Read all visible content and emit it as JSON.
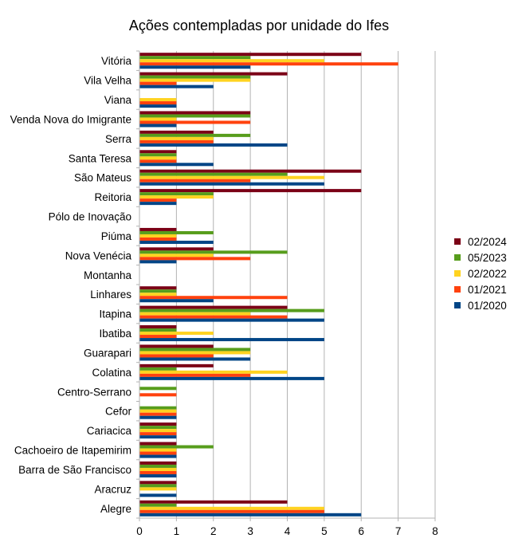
{
  "chart_data": {
    "type": "bar",
    "orientation": "horizontal",
    "title": "Ações contempladas por unidade do Ifes",
    "xlabel": "",
    "ylabel": "",
    "xlim": [
      0,
      8
    ],
    "xticks": [
      "0",
      "1",
      "2",
      "3",
      "4",
      "5",
      "6",
      "7",
      "8"
    ],
    "grid": "vertical",
    "legend_position": "right",
    "categories": [
      "Vitória",
      "Vila Velha",
      "Viana",
      "Venda Nova do Imigrante",
      "Serra",
      "Santa Teresa",
      "São Mateus",
      "Reitoria",
      "Pólo de Inovação",
      "Piúma",
      "Nova Venécia",
      "Montanha",
      "Linhares",
      "Itapina",
      "Ibatiba",
      "Guarapari",
      "Colatina",
      "Centro-Serrano",
      "Cefor",
      "Cariacica",
      "Cachoeiro de Itapemirim",
      "Barra de São Francisco",
      "Aracruz",
      "Alegre"
    ],
    "series": [
      {
        "name": "02/2024",
        "color": "#7b0016",
        "values": [
          6,
          4,
          0,
          3,
          2,
          1,
          6,
          6,
          0,
          1,
          2,
          0,
          1,
          4,
          1,
          2,
          2,
          0,
          0,
          1,
          1,
          1,
          1,
          4
        ]
      },
      {
        "name": "05/2023",
        "color": "#579d1c",
        "values": [
          3,
          3,
          0,
          3,
          3,
          1,
          4,
          2,
          0,
          2,
          4,
          0,
          1,
          5,
          1,
          3,
          1,
          1,
          1,
          1,
          2,
          1,
          1,
          1
        ]
      },
      {
        "name": "02/2022",
        "color": "#ffd320",
        "values": [
          5,
          3,
          1,
          1,
          2,
          1,
          5,
          2,
          0,
          1,
          2,
          0,
          1,
          3,
          2,
          3,
          4,
          0,
          1,
          1,
          1,
          1,
          1,
          5
        ]
      },
      {
        "name": "01/2021",
        "color": "#ff420e",
        "values": [
          7,
          1,
          1,
          3,
          2,
          1,
          3,
          1,
          0,
          1,
          3,
          0,
          4,
          4,
          1,
          2,
          3,
          1,
          1,
          1,
          1,
          1,
          0,
          5
        ]
      },
      {
        "name": "01/2020",
        "color": "#004586",
        "values": [
          3,
          2,
          1,
          1,
          4,
          2,
          5,
          1,
          0,
          2,
          1,
          0,
          2,
          5,
          5,
          3,
          5,
          0,
          1,
          1,
          1,
          1,
          1,
          6
        ]
      }
    ]
  }
}
